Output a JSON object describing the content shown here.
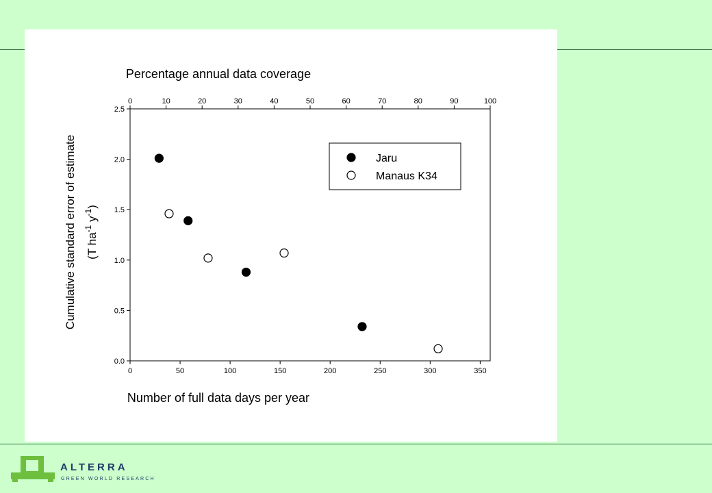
{
  "chart_data": {
    "type": "scatter",
    "title": "Percentage annual data coverage",
    "xlabel": "Number of full data days per year",
    "ylabel": "Cumulative standard error of estimate",
    "ylabel_units": {
      "open": "(T ha",
      "sup1": "-1",
      "mid": " y",
      "sup2": "-1",
      "close": ")"
    },
    "xlim": [
      0,
      360
    ],
    "ylim": [
      0,
      2.5
    ],
    "x_ticks": [
      "0",
      "50",
      "100",
      "150",
      "200",
      "250",
      "300",
      "350"
    ],
    "y_ticks": [
      "0.0",
      "0.5",
      "1.0",
      "1.5",
      "2.0",
      "2.5"
    ],
    "top_axis_lim": [
      0,
      100
    ],
    "top_ticks": [
      "0",
      "10",
      "20",
      "30",
      "40",
      "50",
      "60",
      "70",
      "80",
      "90",
      "100"
    ],
    "series": [
      {
        "name": "Jaru",
        "marker": "filled",
        "color": "#000000",
        "points": [
          [
            29,
            2.01
          ],
          [
            58,
            1.39
          ],
          [
            116,
            0.88
          ],
          [
            232,
            0.34
          ]
        ]
      },
      {
        "name": "Manaus K34",
        "marker": "open",
        "color": "#000000",
        "points": [
          [
            39,
            1.46
          ],
          [
            78,
            1.02
          ],
          [
            154,
            1.07
          ],
          [
            308,
            0.12
          ]
        ]
      }
    ],
    "legend_position": "top-right",
    "grid": false
  },
  "branding": {
    "logo_word": "ALTERRA",
    "logo_tagline": "GREEN WORLD RESEARCH",
    "colors": {
      "background": "#ccffcc",
      "rule": "#2f6f3f",
      "logo_green": "#6fbf3f",
      "logo_blue": "#1f3b66"
    }
  }
}
